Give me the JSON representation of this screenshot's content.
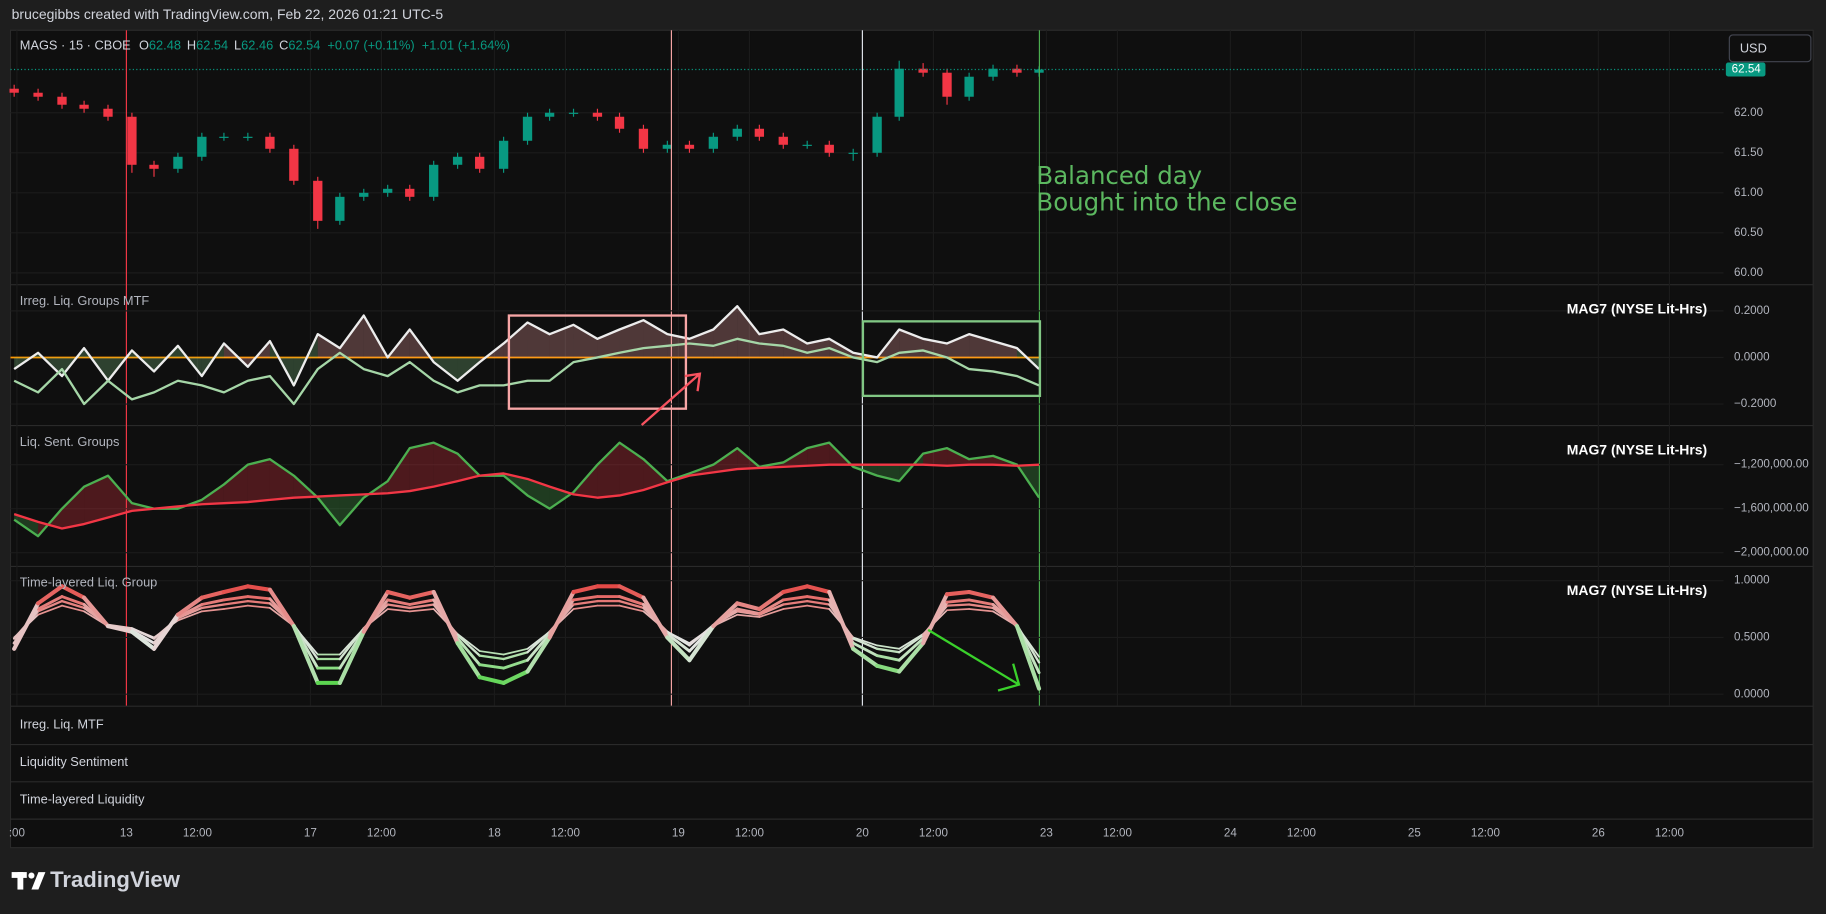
{
  "header": {
    "credit": "brucegibbs created with TradingView.com, Feb 22, 2026 01:21 UTC-5",
    "currency": "USD",
    "legend": {
      "symbol": "MAGS · 15 · CBOE",
      "ohlc": [
        {
          "label": "O",
          "value": 62.48
        },
        {
          "label": "H",
          "value": 62.54
        },
        {
          "label": "L",
          "value": 62.46
        },
        {
          "label": "C",
          "value": 62.54
        }
      ],
      "change": "+0.07 (+0.11%)",
      "change_week": "+1.01 (+1.64%)"
    }
  },
  "chart_data": [
    {
      "type": "candlestick",
      "x": [
        -0.61,
        -0.48,
        -0.35,
        -0.23,
        -0.1,
        0.03,
        0.15,
        0.28,
        0.41,
        0.53,
        0.66,
        0.78,
        0.91,
        1.04,
        1.16,
        1.29,
        1.42,
        1.54,
        1.67,
        1.8,
        1.92,
        2.05,
        2.18,
        2.3,
        2.43,
        2.56,
        2.68,
        2.81,
        2.94,
        3.06,
        3.19,
        3.32,
        3.44,
        3.57,
        3.7,
        3.82,
        3.95,
        4.08,
        4.2,
        4.33,
        4.46,
        4.58,
        4.71,
        4.84,
        4.96
      ],
      "open": [
        62.3,
        62.25,
        62.2,
        62.1,
        62.05,
        61.95,
        61.35,
        61.3,
        61.45,
        61.7,
        61.7,
        61.7,
        61.55,
        61.15,
        60.65,
        60.95,
        61.0,
        61.05,
        60.95,
        61.35,
        61.45,
        61.3,
        61.65,
        61.95,
        62.0,
        62.0,
        61.95,
        61.8,
        61.55,
        61.6,
        61.55,
        61.7,
        61.8,
        61.7,
        61.6,
        61.6,
        61.5,
        61.5,
        61.95,
        62.55,
        62.5,
        62.2,
        62.45,
        62.55,
        62.5
      ],
      "high": [
        62.35,
        62.3,
        62.25,
        62.15,
        62.1,
        62.0,
        61.4,
        61.5,
        61.75,
        61.75,
        61.75,
        61.75,
        61.6,
        61.2,
        61.0,
        61.05,
        61.1,
        61.1,
        61.4,
        61.5,
        61.5,
        61.7,
        62.0,
        62.05,
        62.05,
        62.05,
        62.0,
        61.85,
        61.65,
        61.65,
        61.75,
        61.85,
        61.85,
        61.75,
        61.65,
        61.65,
        61.55,
        62.0,
        62.65,
        62.62,
        62.55,
        62.5,
        62.6,
        62.6,
        62.58
      ],
      "low": [
        62.2,
        62.15,
        62.05,
        62.0,
        61.9,
        61.25,
        61.2,
        61.25,
        61.4,
        61.65,
        61.65,
        61.5,
        61.1,
        60.55,
        60.6,
        60.9,
        60.95,
        60.9,
        60.9,
        61.3,
        61.25,
        61.25,
        61.6,
        61.9,
        61.95,
        61.9,
        61.75,
        61.5,
        61.5,
        61.5,
        61.5,
        61.65,
        61.65,
        61.55,
        61.55,
        61.45,
        61.4,
        61.45,
        61.9,
        62.45,
        62.1,
        62.15,
        62.4,
        62.45,
        62.45
      ],
      "close": [
        62.25,
        62.2,
        62.1,
        62.05,
        61.95,
        61.35,
        61.3,
        61.45,
        61.7,
        61.7,
        61.7,
        61.55,
        61.15,
        60.65,
        60.95,
        61.0,
        61.05,
        60.95,
        61.35,
        61.45,
        61.3,
        61.65,
        61.95,
        62.0,
        62.0,
        61.95,
        61.8,
        61.55,
        61.6,
        61.55,
        61.7,
        61.8,
        61.7,
        61.6,
        61.6,
        61.5,
        61.5,
        61.95,
        62.55,
        62.5,
        62.2,
        62.45,
        62.55,
        62.5,
        62.54
      ],
      "up_color": "#089981",
      "down_color": "#f23645",
      "xlim": [
        -0.63,
        8.68
      ],
      "xticks": [
        {
          "value": -0.595,
          "label": ":00"
        },
        {
          "value": 0,
          "label": "13"
        },
        {
          "value": 0.386,
          "label": "12:00"
        },
        {
          "value": 1,
          "label": "17"
        },
        {
          "value": 1.386,
          "label": "12:00"
        },
        {
          "value": 2,
          "label": "18"
        },
        {
          "value": 2.386,
          "label": "12:00"
        },
        {
          "value": 3,
          "label": "19"
        },
        {
          "value": 3.386,
          "label": "12:00"
        },
        {
          "value": 4,
          "label": "20"
        },
        {
          "value": 4.386,
          "label": "12:00"
        },
        {
          "value": 5,
          "label": "23"
        },
        {
          "value": 5.386,
          "label": "12:00"
        },
        {
          "value": 6,
          "label": "24"
        },
        {
          "value": 6.386,
          "label": "12:00"
        },
        {
          "value": 7,
          "label": "25"
        },
        {
          "value": 7.386,
          "label": "12:00"
        },
        {
          "value": 8,
          "label": "26"
        },
        {
          "value": 8.386,
          "label": "12:00"
        }
      ],
      "ylim": [
        59.86,
        63.03
      ],
      "yticks": [
        {
          "value": 62,
          "label": "62.00"
        },
        {
          "value": 61.5,
          "label": "61.50"
        },
        {
          "value": 61,
          "label": "61.00"
        },
        {
          "value": 60.5,
          "label": "60.50"
        },
        {
          "value": 60,
          "label": "60.00"
        }
      ],
      "grid": true,
      "vlines": [
        {
          "x": 0,
          "color": "#f23645"
        },
        {
          "x": 2.962,
          "color": "#f7a6a6"
        },
        {
          "x": 4,
          "color": "#e0e3eb"
        },
        {
          "x": 4.962,
          "color": "#4caf50"
        }
      ],
      "annotations": [
        "Balanced day",
        "Bought into the close"
      ],
      "annotation_color": "#5cb860"
    },
    {
      "type": "line",
      "title": "Irreg. Liq. Groups MTF",
      "label": "MAG7 (NYSE Lit-Hrs)",
      "series": [
        {
          "color": "#ececec",
          "values": [
            -0.05,
            0.02,
            -0.08,
            0.04,
            -0.1,
            0.03,
            -0.06,
            0.05,
            -0.08,
            0.06,
            -0.04,
            0.07,
            -0.12,
            0.1,
            0.04,
            0.18,
            0,
            0.12,
            -0.02,
            -0.1,
            -0.02,
            0.06,
            0.15,
            0.1,
            0.14,
            0.08,
            0.12,
            0.16,
            0.1,
            0.08,
            0.12,
            0.22,
            0.1,
            0.12,
            0.06,
            0.08,
            0.02,
            0,
            0.12,
            0.08,
            0.06,
            0.1,
            0.07,
            0.04,
            -0.05
          ]
        },
        {
          "color": "#a5d6a7",
          "values": [
            -0.1,
            -0.15,
            -0.05,
            -0.2,
            -0.1,
            -0.18,
            -0.15,
            -0.1,
            -0.12,
            -0.15,
            -0.1,
            -0.08,
            -0.2,
            -0.05,
            0.02,
            -0.05,
            -0.08,
            -0.02,
            -0.1,
            -0.15,
            -0.12,
            -0.12,
            -0.1,
            -0.1,
            -0.02,
            0,
            0.02,
            0.04,
            0.05,
            0.06,
            0.05,
            0.08,
            0.06,
            0.05,
            0.02,
            0.04,
            0,
            -0.02,
            0.02,
            0.03,
            0,
            -0.05,
            -0.06,
            -0.08,
            -0.12
          ]
        }
      ],
      "fill": "zero",
      "fill_colors": [
        "#f7a6a6",
        "#81c784"
      ],
      "hlines": [
        {
          "value": 0,
          "color": "#ff9800"
        }
      ],
      "ylim": [
        -0.29,
        0.31
      ],
      "yticks": [
        {
          "value": 0.2,
          "label": "0.2000"
        },
        {
          "value": 0,
          "label": "0.0000"
        },
        {
          "value": -0.2,
          "label": "−0.2000"
        }
      ],
      "grid": true
    },
    {
      "type": "line",
      "title": "Liq. Sent. Groups",
      "label": "MAG7 (NYSE Lit-Hrs)",
      "series": [
        {
          "color": "#4caf50",
          "values": [
            -1700000,
            -1850000,
            -1600000,
            -1400000,
            -1300000,
            -1550000,
            -1600000,
            -1600000,
            -1520000,
            -1380000,
            -1200000,
            -1150000,
            -1300000,
            -1500000,
            -1750000,
            -1500000,
            -1350000,
            -1050000,
            -1000000,
            -1100000,
            -1300000,
            -1300000,
            -1480000,
            -1600000,
            -1450000,
            -1200000,
            -1000000,
            -1150000,
            -1350000,
            -1280000,
            -1200000,
            -1050000,
            -1220000,
            -1180000,
            -1050000,
            -1000000,
            -1220000,
            -1300000,
            -1350000,
            -1100000,
            -1050000,
            -1150000,
            -1120000,
            -1200000,
            -1500000
          ]
        },
        {
          "color": "#f23645",
          "values": [
            -1650000,
            -1720000,
            -1780000,
            -1740000,
            -1680000,
            -1620000,
            -1600000,
            -1580000,
            -1560000,
            -1550000,
            -1540000,
            -1520000,
            -1500000,
            -1490000,
            -1480000,
            -1470000,
            -1460000,
            -1440000,
            -1400000,
            -1350000,
            -1300000,
            -1280000,
            -1330000,
            -1400000,
            -1470000,
            -1500000,
            -1480000,
            -1430000,
            -1360000,
            -1300000,
            -1270000,
            -1240000,
            -1230000,
            -1220000,
            -1210000,
            -1200000,
            -1200000,
            -1200000,
            -1200000,
            -1200000,
            -1210000,
            -1200000,
            -1200000,
            -1210000,
            -1200000
          ]
        }
      ],
      "fill": "between",
      "fill_colors": [
        "#f23645",
        "#4caf50"
      ],
      "ylim": [
        -2120000,
        -850000
      ],
      "yticks": [
        {
          "value": -1200000,
          "label": "−1,200,000.00"
        },
        {
          "value": -1600000,
          "label": "−1,600,000.00"
        },
        {
          "value": -2000000,
          "label": "−2,000,000.00"
        }
      ],
      "grid": true
    },
    {
      "type": "line",
      "title": "Time-layered Liq. Group",
      "label": "MAG7 (NYSE Lit-Hrs)",
      "color_scale": [
        "#3ad12b",
        "#e6e6e6",
        "#e53935"
      ],
      "series": [
        {
          "width": 1.5,
          "values": [
            0.5,
            0.7,
            0.78,
            0.73,
            0.6,
            0.58,
            0.5,
            0.65,
            0.73,
            0.75,
            0.78,
            0.76,
            0.6,
            0.35,
            0.35,
            0.58,
            0.75,
            0.73,
            0.75,
            0.53,
            0.38,
            0.35,
            0.4,
            0.55,
            0.75,
            0.78,
            0.78,
            0.73,
            0.55,
            0.45,
            0.6,
            0.7,
            0.68,
            0.75,
            0.78,
            0.75,
            0.5,
            0.43,
            0.4,
            0.53,
            0.74,
            0.75,
            0.73,
            0.6,
            0.33
          ]
        },
        {
          "width": 2,
          "values": [
            0.49,
            0.73,
            0.82,
            0.76,
            0.61,
            0.58,
            0.49,
            0.67,
            0.76,
            0.79,
            0.82,
            0.8,
            0.61,
            0.31,
            0.31,
            0.58,
            0.79,
            0.76,
            0.79,
            0.52,
            0.34,
            0.31,
            0.37,
            0.55,
            0.79,
            0.82,
            0.82,
            0.76,
            0.55,
            0.43,
            0.61,
            0.73,
            0.7,
            0.79,
            0.82,
            0.79,
            0.49,
            0.4,
            0.37,
            0.52,
            0.78,
            0.79,
            0.76,
            0.61,
            0.28
          ]
        },
        {
          "width": 2.5,
          "values": [
            0.45,
            0.75,
            0.86,
            0.79,
            0.6,
            0.56,
            0.45,
            0.68,
            0.79,
            0.83,
            0.86,
            0.84,
            0.6,
            0.23,
            0.23,
            0.56,
            0.83,
            0.79,
            0.83,
            0.49,
            0.26,
            0.23,
            0.3,
            0.53,
            0.83,
            0.86,
            0.86,
            0.79,
            0.53,
            0.38,
            0.6,
            0.75,
            0.71,
            0.83,
            0.86,
            0.83,
            0.45,
            0.34,
            0.3,
            0.49,
            0.81,
            0.83,
            0.79,
            0.6,
            0.19
          ]
        },
        {
          "width": 3.5,
          "values": [
            0.4,
            0.8,
            0.95,
            0.85,
            0.6,
            0.55,
            0.4,
            0.7,
            0.85,
            0.9,
            0.95,
            0.92,
            0.6,
            0.1,
            0.1,
            0.55,
            0.9,
            0.85,
            0.9,
            0.45,
            0.15,
            0.1,
            0.2,
            0.5,
            0.9,
            0.95,
            0.95,
            0.85,
            0.5,
            0.3,
            0.6,
            0.8,
            0.75,
            0.9,
            0.95,
            0.9,
            0.4,
            0.25,
            0.2,
            0.45,
            0.88,
            0.9,
            0.85,
            0.6,
            0.05
          ]
        }
      ],
      "ylim": [
        -0.1,
        1.12
      ],
      "yticks": [
        {
          "value": 1,
          "label": "1.0000"
        },
        {
          "value": 0.5,
          "label": "0.5000"
        },
        {
          "value": 0,
          "label": "0.0000"
        }
      ],
      "grid": true
    }
  ],
  "collapsed_panes": [
    "Irreg. Liq. MTF",
    "Liquidity Sentiment",
    "Time-layered Liquidity"
  ],
  "footer": {
    "logo": "TradingView"
  }
}
